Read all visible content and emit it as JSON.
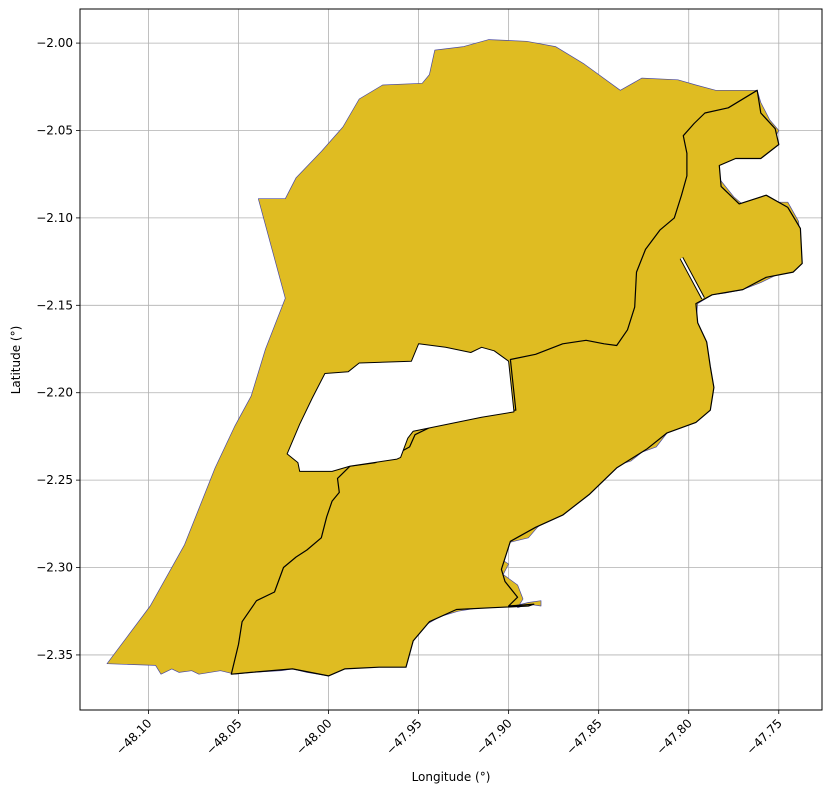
{
  "chart_data": {
    "type": "map",
    "xlabel": "Longitude (°)",
    "ylabel": "Latitude (°)",
    "xlim": [
      -48.138,
      -47.726
    ],
    "ylim": [
      -2.3815,
      -1.9805
    ],
    "x_ticks": [
      {
        "value": -48.1,
        "label": "−48.10"
      },
      {
        "value": -48.05,
        "label": "−48.05"
      },
      {
        "value": -48.0,
        "label": "−48.00"
      },
      {
        "value": -47.95,
        "label": "−47.95"
      },
      {
        "value": -47.9,
        "label": "−47.90"
      },
      {
        "value": -47.85,
        "label": "−47.85"
      },
      {
        "value": -47.8,
        "label": "−47.80"
      },
      {
        "value": -47.75,
        "label": "−47.75"
      }
    ],
    "y_ticks": [
      {
        "value": -2.0,
        "label": "−2.00"
      },
      {
        "value": -2.05,
        "label": "−2.05"
      },
      {
        "value": -2.1,
        "label": "−2.10"
      },
      {
        "value": -2.15,
        "label": "−2.15"
      },
      {
        "value": -2.2,
        "label": "−2.20"
      },
      {
        "value": -2.25,
        "label": "−2.25"
      },
      {
        "value": -2.3,
        "label": "−2.30"
      },
      {
        "value": -2.35,
        "label": "−2.35"
      }
    ],
    "grid": true,
    "fill_color": "#dfbc22",
    "regions": [
      {
        "edge_color": "#4a4aa0",
        "edge_width": 0.7,
        "rings": [
          [
            [
              -48.123,
              -2.355
            ],
            [
              -48.096,
              -2.356
            ],
            [
              -48.093,
              -2.361
            ],
            [
              -48.087,
              -2.358
            ],
            [
              -48.083,
              -2.36
            ],
            [
              -48.076,
              -2.359
            ],
            [
              -48.072,
              -2.361
            ],
            [
              -48.06,
              -2.359
            ],
            [
              -48.052,
              -2.361
            ],
            [
              -48.043,
              -2.36
            ],
            [
              -48.026,
              -2.359
            ],
            [
              -48.02,
              -2.358
            ],
            [
              -48.012,
              -2.36
            ],
            [
              -48.0,
              -2.362
            ],
            [
              -47.992,
              -2.358
            ],
            [
              -47.985,
              -2.357
            ],
            [
              -47.972,
              -2.357
            ],
            [
              -47.958,
              -2.357
            ],
            [
              -47.954,
              -2.343
            ],
            [
              -47.948,
              -2.334
            ],
            [
              -47.938,
              -2.328
            ],
            [
              -47.928,
              -2.325
            ],
            [
              -47.916,
              -2.323
            ],
            [
              -47.897,
              -2.322
            ],
            [
              -47.889,
              -2.32
            ],
            [
              -47.882,
              -2.319
            ],
            [
              -47.882,
              -2.322
            ],
            [
              -47.889,
              -2.321
            ],
            [
              -47.895,
              -2.323
            ],
            [
              -47.892,
              -2.318
            ],
            [
              -47.895,
              -2.31
            ],
            [
              -47.903,
              -2.304
            ],
            [
              -47.9,
              -2.298
            ],
            [
              -47.906,
              -2.294
            ],
            [
              -47.905,
              -2.287
            ],
            [
              -47.897,
              -2.285
            ],
            [
              -47.889,
              -2.283
            ],
            [
              -47.884,
              -2.277
            ],
            [
              -47.874,
              -2.268
            ],
            [
              -47.862,
              -2.259
            ],
            [
              -47.848,
              -2.246
            ],
            [
              -47.841,
              -2.242
            ],
            [
              -47.832,
              -2.239
            ],
            [
              -47.826,
              -2.234
            ],
            [
              -47.818,
              -2.231
            ],
            [
              -47.812,
              -2.223
            ],
            [
              -47.805,
              -2.219
            ],
            [
              -47.796,
              -2.212
            ],
            [
              -47.79,
              -2.208
            ],
            [
              -47.787,
              -2.2
            ],
            [
              -47.789,
              -2.187
            ],
            [
              -47.791,
              -2.176
            ],
            [
              -47.794,
              -2.165
            ],
            [
              -47.796,
              -2.159
            ],
            [
              -47.795,
              -2.149
            ],
            [
              -47.787,
              -2.144
            ],
            [
              -47.78,
              -2.143
            ],
            [
              -47.77,
              -2.141
            ],
            [
              -47.76,
              -2.137
            ],
            [
              -47.75,
              -2.132
            ],
            [
              -47.74,
              -2.128
            ],
            [
              -47.738,
              -2.114
            ],
            [
              -47.739,
              -2.102
            ],
            [
              -47.745,
              -2.091
            ],
            [
              -47.755,
              -2.091
            ],
            [
              -47.767,
              -2.095
            ],
            [
              -47.775,
              -2.088
            ],
            [
              -47.785,
              -2.075
            ],
            [
              -47.785,
              -2.07
            ],
            [
              -47.775,
              -2.065
            ],
            [
              -47.763,
              -2.062
            ],
            [
              -47.754,
              -2.058
            ],
            [
              -47.75,
              -2.05
            ],
            [
              -47.755,
              -2.044
            ],
            [
              -47.76,
              -2.034
            ],
            [
              -47.762,
              -2.027
            ],
            [
              -47.772,
              -2.027
            ],
            [
              -47.785,
              -2.027
            ],
            [
              -47.796,
              -2.024
            ],
            [
              -47.806,
              -2.021
            ],
            [
              -47.826,
              -2.02
            ],
            [
              -47.838,
              -2.027
            ],
            [
              -47.858,
              -2.012
            ],
            [
              -47.874,
              -2.002
            ],
            [
              -47.89,
              -1.999
            ],
            [
              -47.911,
              -1.998
            ],
            [
              -47.925,
              -2.002
            ],
            [
              -47.941,
              -2.004
            ],
            [
              -47.944,
              -2.018
            ],
            [
              -47.948,
              -2.023
            ],
            [
              -47.97,
              -2.024
            ],
            [
              -47.983,
              -2.032
            ],
            [
              -47.992,
              -2.048
            ],
            [
              -48.004,
              -2.062
            ],
            [
              -48.018,
              -2.077
            ],
            [
              -48.024,
              -2.089
            ],
            [
              -48.039,
              -2.089
            ],
            [
              -48.024,
              -2.146
            ],
            [
              -48.035,
              -2.175
            ],
            [
              -48.043,
              -2.202
            ],
            [
              -48.052,
              -2.219
            ],
            [
              -48.063,
              -2.243
            ],
            [
              -48.08,
              -2.287
            ],
            [
              -48.099,
              -2.322
            ],
            [
              -48.123,
              -2.355
            ]
          ]
        ]
      },
      {
        "edge_color": "#000000",
        "edge_width": 1.2,
        "rings": [
          [
            [
              -48.054,
              -2.361
            ],
            [
              -48.05,
              -2.344
            ],
            [
              -48.048,
              -2.331
            ],
            [
              -48.04,
              -2.319
            ],
            [
              -48.03,
              -2.314
            ],
            [
              -48.025,
              -2.3
            ],
            [
              -48.018,
              -2.294
            ],
            [
              -48.012,
              -2.29
            ],
            [
              -48.004,
              -2.283
            ],
            [
              -48.001,
              -2.271
            ],
            [
              -47.998,
              -2.262
            ],
            [
              -47.994,
              -2.257
            ],
            [
              -47.995,
              -2.249
            ],
            [
              -47.988,
              -2.242
            ],
            [
              -47.974,
              -2.24
            ],
            [
              -47.962,
              -2.235
            ],
            [
              -47.955,
              -2.231
            ],
            [
              -47.952,
              -2.224
            ],
            [
              -47.946,
              -2.221
            ],
            [
              -47.936,
              -2.216
            ],
            [
              -47.915,
              -2.21
            ],
            [
              -47.896,
              -2.21
            ],
            [
              -47.899,
              -2.181
            ],
            [
              -47.885,
              -2.178
            ],
            [
              -47.87,
              -2.172
            ],
            [
              -47.857,
              -2.17
            ],
            [
              -47.847,
              -2.172
            ],
            [
              -47.84,
              -2.173
            ],
            [
              -47.834,
              -2.164
            ],
            [
              -47.83,
              -2.151
            ],
            [
              -47.829,
              -2.131
            ],
            [
              -47.824,
              -2.118
            ],
            [
              -47.816,
              -2.107
            ],
            [
              -47.808,
              -2.1
            ],
            [
              -47.804,
              -2.087
            ],
            [
              -47.801,
              -2.076
            ],
            [
              -47.801,
              -2.063
            ],
            [
              -47.803,
              -2.053
            ],
            [
              -47.797,
              -2.046
            ],
            [
              -47.791,
              -2.04
            ],
            [
              -47.778,
              -2.037
            ],
            [
              -47.762,
              -2.027
            ],
            [
              -47.76,
              -2.04
            ],
            [
              -47.752,
              -2.049
            ],
            [
              -47.75,
              -2.058
            ],
            [
              -47.76,
              -2.066
            ],
            [
              -47.774,
              -2.066
            ],
            [
              -47.783,
              -2.07
            ],
            [
              -47.782,
              -2.082
            ],
            [
              -47.772,
              -2.092
            ],
            [
              -47.757,
              -2.087
            ],
            [
              -47.745,
              -2.094
            ],
            [
              -47.738,
              -2.106
            ],
            [
              -47.737,
              -2.126
            ],
            [
              -47.742,
              -2.131
            ],
            [
              -47.757,
              -2.134
            ],
            [
              -47.77,
              -2.141
            ],
            [
              -47.787,
              -2.144
            ],
            [
              -47.796,
              -2.149
            ],
            [
              -47.795,
              -2.16
            ],
            [
              -47.79,
              -2.171
            ],
            [
              -47.788,
              -2.185
            ],
            [
              -47.786,
              -2.197
            ],
            [
              -47.788,
              -2.21
            ],
            [
              -47.796,
              -2.217
            ],
            [
              -47.812,
              -2.223
            ],
            [
              -47.823,
              -2.232
            ],
            [
              -47.84,
              -2.243
            ],
            [
              -47.855,
              -2.258
            ],
            [
              -47.87,
              -2.27
            ],
            [
              -47.885,
              -2.277
            ],
            [
              -47.899,
              -2.285
            ],
            [
              -47.904,
              -2.301
            ],
            [
              -47.902,
              -2.308
            ],
            [
              -47.895,
              -2.317
            ],
            [
              -47.9,
              -2.322
            ],
            [
              -47.886,
              -2.321
            ],
            [
              -47.889,
              -2.322
            ],
            [
              -47.909,
              -2.323
            ],
            [
              -47.929,
              -2.324
            ],
            [
              -47.944,
              -2.331
            ],
            [
              -47.953,
              -2.342
            ],
            [
              -47.957,
              -2.357
            ],
            [
              -47.972,
              -2.357
            ],
            [
              -47.991,
              -2.358
            ],
            [
              -48.0,
              -2.362
            ],
            [
              -48.02,
              -2.358
            ],
            [
              -48.043,
              -2.36
            ],
            [
              -48.054,
              -2.361
            ]
          ]
        ]
      }
    ],
    "holes": [
      [
        [
          -48.002,
          -2.189
        ],
        [
          -48.009,
          -2.203
        ],
        [
          -48.016,
          -2.218
        ],
        [
          -48.023,
          -2.235
        ],
        [
          -48.017,
          -2.24
        ],
        [
          -48.016,
          -2.245
        ],
        [
          -47.998,
          -2.245
        ],
        [
          -47.988,
          -2.242
        ],
        [
          -47.975,
          -2.24
        ],
        [
          -47.962,
          -2.238
        ],
        [
          -47.96,
          -2.237
        ],
        [
          -47.956,
          -2.226
        ],
        [
          -47.953,
          -2.222
        ],
        [
          -47.915,
          -2.214
        ],
        [
          -47.897,
          -2.211
        ],
        [
          -47.9,
          -2.182
        ],
        [
          -47.908,
          -2.176
        ],
        [
          -47.915,
          -2.174
        ],
        [
          -47.921,
          -2.177
        ],
        [
          -47.935,
          -2.174
        ],
        [
          -47.95,
          -2.172
        ],
        [
          -47.954,
          -2.182
        ],
        [
          -47.983,
          -2.183
        ],
        [
          -47.989,
          -2.188
        ],
        [
          -48.002,
          -2.189
        ]
      ]
    ],
    "line_features": [
      [
        [
          -47.804,
          -2.123
        ],
        [
          -47.792,
          -2.146
        ]
      ]
    ]
  }
}
